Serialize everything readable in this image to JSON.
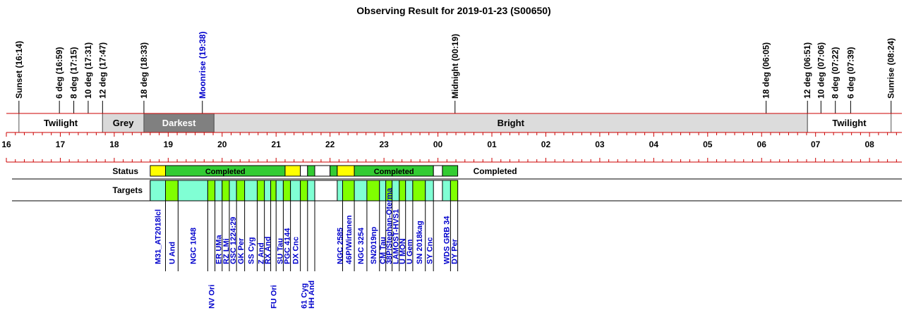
{
  "chart_data": {
    "type": "timeline",
    "title": "Observing Result for 2019-01-23 (S00650)",
    "axis": {
      "start_hour": 16.0,
      "end_hour": 32.6,
      "tick_labels": [
        "16",
        "17",
        "18",
        "19",
        "20",
        "21",
        "22",
        "23",
        "00",
        "01",
        "02",
        "03",
        "04",
        "05",
        "06",
        "07",
        "08"
      ]
    },
    "events": [
      {
        "label": "Sunset (16:14)",
        "time": "16:14",
        "color": "#000000"
      },
      {
        "label": "6 deg (16:59)",
        "time": "16:59",
        "color": "#000000"
      },
      {
        "label": "8 deg (17:15)",
        "time": "17:15",
        "color": "#000000"
      },
      {
        "label": "10 deg (17:31)",
        "time": "17:31",
        "color": "#000000"
      },
      {
        "label": "12 deg (17:47)",
        "time": "17:47",
        "color": "#000000"
      },
      {
        "label": "18 deg (18:33)",
        "time": "18:33",
        "color": "#000000"
      },
      {
        "label": "Moonrise (19:38)",
        "time": "19:38",
        "color": "#0000cc"
      },
      {
        "label": "Midnight (00:19)",
        "time": "00:19",
        "color": "#000000"
      },
      {
        "label": "18 deg (06:05)",
        "time": "06:05",
        "color": "#000000"
      },
      {
        "label": "12 deg (06:51)",
        "time": "06:51",
        "color": "#000000"
      },
      {
        "label": "10 deg (07:06)",
        "time": "07:06",
        "color": "#000000"
      },
      {
        "label": "8 deg (07:22)",
        "time": "07:22",
        "color": "#000000"
      },
      {
        "label": "6 deg (07:39)",
        "time": "07:39",
        "color": "#000000"
      },
      {
        "label": "Sunrise (08:24)",
        "time": "08:24",
        "color": "#000000"
      }
    ],
    "sky_bands": [
      {
        "label": "Twilight",
        "start": "16:14",
        "end": "17:47",
        "fill": "#ffffff",
        "text_color": "#000000"
      },
      {
        "label": "Grey",
        "start": "17:47",
        "end": "18:33",
        "fill": "#d9d9d9",
        "text_color": "#000000"
      },
      {
        "label": "Darkest",
        "start": "18:33",
        "end": "19:51",
        "fill": "#808080",
        "text_color": "#ffffff"
      },
      {
        "label": "Bright",
        "start": "19:51",
        "end": "06:51",
        "fill": "#dcdcdc",
        "text_color": "#000000"
      },
      {
        "label": "Twilight",
        "start": "06:51",
        "end": "08:24",
        "fill": "#ffffff",
        "text_color": "#000000"
      }
    ],
    "status_row": {
      "label": "Status",
      "summary": "Completed",
      "segments": [
        {
          "start": "18:40",
          "end": "18:57",
          "fill": "#ffff00",
          "text": ""
        },
        {
          "start": "18:57",
          "end": "21:10",
          "fill": "#33cc33",
          "text": "Completed"
        },
        {
          "start": "21:10",
          "end": "21:27",
          "fill": "#ffff00",
          "text": ""
        },
        {
          "start": "21:27",
          "end": "21:35",
          "fill": "#ffffff",
          "text": ""
        },
        {
          "start": "21:35",
          "end": "21:43",
          "fill": "#33cc33",
          "text": ""
        },
        {
          "start": "21:43",
          "end": "22:00",
          "fill": "#ffffff",
          "text": ""
        },
        {
          "start": "22:00",
          "end": "22:08",
          "fill": "#33cc33",
          "text": ""
        },
        {
          "start": "22:08",
          "end": "22:27",
          "fill": "#ffff00",
          "text": ""
        },
        {
          "start": "22:27",
          "end": "23:55",
          "fill": "#33cc33",
          "text": "Completed"
        },
        {
          "start": "23:55",
          "end": "00:05",
          "fill": "#ffffff",
          "text": ""
        },
        {
          "start": "00:05",
          "end": "00:22",
          "fill": "#33cc33",
          "text": ""
        }
      ]
    },
    "targets_row": {
      "label": "Targets",
      "items": [
        {
          "name": "M31_AT2018lcl",
          "start": "18:40",
          "end": "18:57",
          "fill": "#80ffd4",
          "lane": 0
        },
        {
          "name": "U And",
          "start": "18:57",
          "end": "19:11",
          "fill": "#80ff00",
          "lane": 0
        },
        {
          "name": "NGC 1048",
          "start": "19:11",
          "end": "19:44",
          "fill": "#80ffd4",
          "lane": 0
        },
        {
          "name": "NV Ori",
          "start": "19:44",
          "end": "19:52",
          "fill": "#80ff00",
          "lane": 1
        },
        {
          "name": "ER UMa",
          "start": "19:52",
          "end": "20:00",
          "fill": "#80ffd4",
          "lane": 0
        },
        {
          "name": "RZ LMi",
          "start": "20:00",
          "end": "20:08",
          "fill": "#80ff00",
          "lane": 0
        },
        {
          "name": "GSC 1224:29",
          "start": "20:08",
          "end": "20:16",
          "fill": "#80ffd4",
          "lane": 0
        },
        {
          "name": "GK Per",
          "start": "20:16",
          "end": "20:25",
          "fill": "#80ff00",
          "lane": 0
        },
        {
          "name": "SS Cyg",
          "start": "20:25",
          "end": "20:39",
          "fill": "#80ffd4",
          "lane": 0
        },
        {
          "name": "Z And",
          "start": "20:39",
          "end": "20:47",
          "fill": "#80ff00",
          "lane": 0
        },
        {
          "name": "RX And",
          "start": "20:47",
          "end": "20:54",
          "fill": "#80ffd4",
          "lane": 0
        },
        {
          "name": "FU Ori",
          "start": "20:54",
          "end": "21:00",
          "fill": "#80ff00",
          "lane": 1
        },
        {
          "name": "SU Tau",
          "start": "21:00",
          "end": "21:08",
          "fill": "#80ffd4",
          "lane": 0
        },
        {
          "name": "PGC 4144",
          "start": "21:08",
          "end": "21:16",
          "fill": "#80ff00",
          "lane": 0
        },
        {
          "name": "DX Cnc",
          "start": "21:16",
          "end": "21:27",
          "fill": "#80ffd4",
          "lane": 0
        },
        {
          "name": "61 Cyg",
          "start": "21:27",
          "end": "21:35",
          "fill": "#80ff00",
          "lane": 1
        },
        {
          "name": "HH And",
          "start": "21:35",
          "end": "21:43",
          "fill": "#80ffd4",
          "lane": 1
        },
        {
          "name": "NGC 2585",
          "start": "22:08",
          "end": "22:14",
          "fill": "#80ffd4",
          "lane": 0
        },
        {
          "name": "46P/Wirtanen",
          "start": "22:14",
          "end": "22:27",
          "fill": "#80ff00",
          "lane": 0
        },
        {
          "name": "NGC 3254",
          "start": "22:27",
          "end": "22:41",
          "fill": "#80ffd4",
          "lane": 0
        },
        {
          "name": "SN2019np",
          "start": "22:41",
          "end": "22:55",
          "fill": "#80ff00",
          "lane": 0
        },
        {
          "name": "CM Tau",
          "start": "22:55",
          "end": "23:02",
          "fill": "#80ffd4",
          "lane": 0
        },
        {
          "name": "38P/Stephan-Oterma",
          "start": "23:02",
          "end": "23:09",
          "fill": "#80ff00",
          "lane": 0
        },
        {
          "name": "LAMOST-HVS1",
          "start": "23:09",
          "end": "23:17",
          "fill": "#80ffd4",
          "lane": 0
        },
        {
          "name": "U MON",
          "start": "23:17",
          "end": "23:24",
          "fill": "#80ff00",
          "lane": 0
        },
        {
          "name": "U Gem",
          "start": "23:24",
          "end": "23:32",
          "fill": "#80ffd4",
          "lane": 0
        },
        {
          "name": "SN 2018kag",
          "start": "23:32",
          "end": "23:46",
          "fill": "#80ff00",
          "lane": 0
        },
        {
          "name": "SY Cnc",
          "start": "23:46",
          "end": "23:55",
          "fill": "#80ffd4",
          "lane": 0
        },
        {
          "name": "WDS GRB 34",
          "start": "00:05",
          "end": "00:14",
          "fill": "#80ffd4",
          "lane": 0
        },
        {
          "name": "DY Per",
          "start": "00:14",
          "end": "00:22",
          "fill": "#80ff00",
          "lane": 0
        }
      ]
    }
  }
}
